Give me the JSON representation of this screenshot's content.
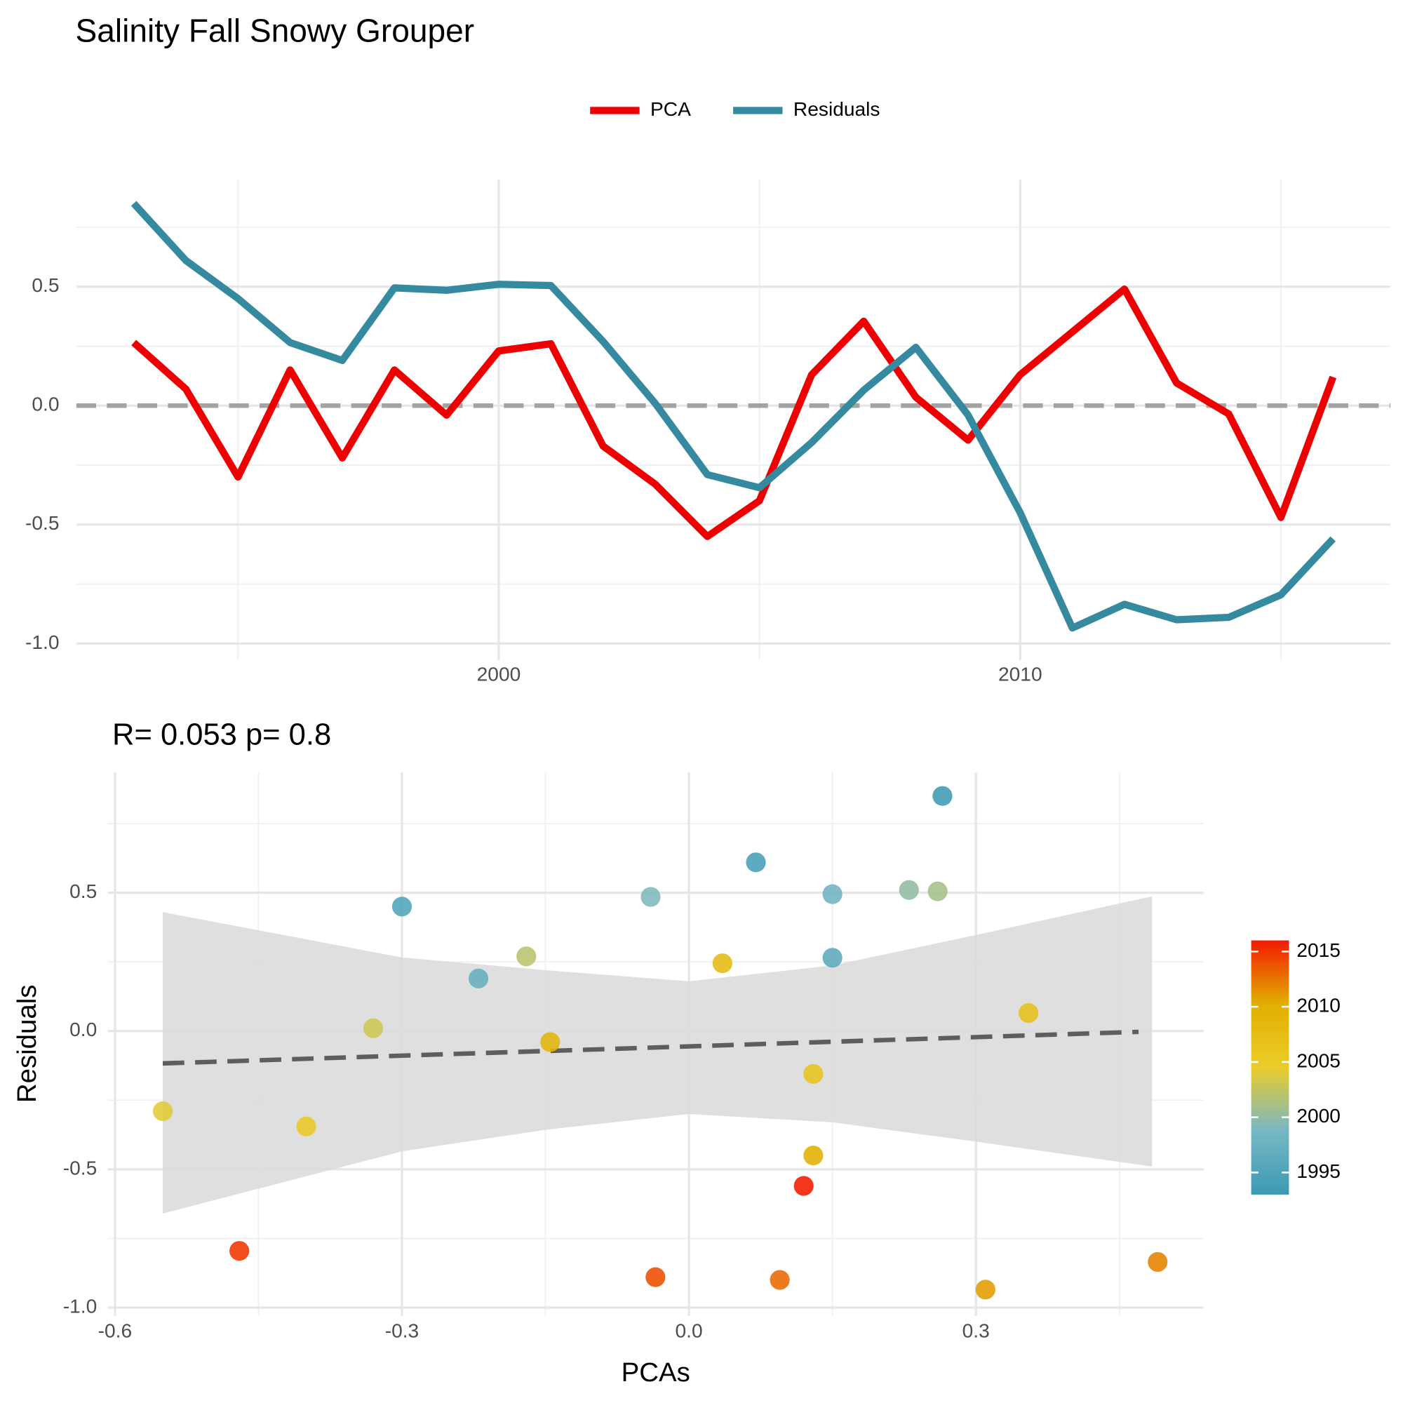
{
  "chart_data": [
    {
      "type": "line",
      "title": "Salinity Fall Snowy Grouper",
      "x": [
        1993,
        1994,
        1995,
        1996,
        1997,
        1998,
        1999,
        2000,
        2001,
        2002,
        2003,
        2004,
        2005,
        2006,
        2007,
        2008,
        2009,
        2010,
        2011,
        2012,
        2013,
        2014,
        2015,
        2016
      ],
      "series": [
        {
          "name": "PCA",
          "color": "#ee0000",
          "values": [
            0.265,
            0.07,
            -0.3,
            0.15,
            -0.22,
            0.15,
            -0.04,
            0.23,
            0.26,
            -0.17,
            -0.33,
            -0.55,
            -0.4,
            0.13,
            0.355,
            0.035,
            -0.145,
            0.13,
            0.31,
            0.49,
            0.095,
            -0.035,
            -0.47,
            0.12
          ]
        },
        {
          "name": "Residuals",
          "color": "#358aa0",
          "values": [
            0.85,
            0.61,
            0.45,
            0.265,
            0.19,
            0.495,
            0.485,
            0.51,
            0.505,
            0.27,
            0.01,
            -0.29,
            -0.345,
            -0.155,
            0.065,
            0.245,
            -0.04,
            -0.45,
            -0.935,
            -0.835,
            -0.9,
            -0.89,
            -0.795,
            -0.56
          ]
        }
      ],
      "xlim": [
        1991.9,
        2017.1
      ],
      "ylim": [
        -1.07,
        0.95
      ],
      "xticks": [
        2000,
        2010
      ],
      "minor_xticks": [
        1995,
        2005,
        2015
      ],
      "yticks": [
        {
          "value": -1,
          "label": "-1.0"
        },
        -0.5,
        {
          "value": 0,
          "label": "0.0"
        },
        0.5
      ],
      "minor_yticks": [
        -0.75,
        -0.25,
        0.25,
        0.75
      ],
      "reference_line": 0,
      "grid": true,
      "legend": "top"
    },
    {
      "type": "scatter",
      "title": "R= 0.053  p= 0.8",
      "xlabel": "PCAs",
      "ylabel": "Residuals",
      "xlim": [
        -0.6075,
        0.538
      ],
      "ylim": [
        -1.03,
        0.935
      ],
      "xticks": [
        -0.6,
        -0.3,
        {
          "value": 0,
          "label": "0.0"
        },
        0.3
      ],
      "minor_xticks": [
        -0.45,
        -0.15,
        0.15,
        0.45
      ],
      "yticks": [
        {
          "value": -1,
          "label": "-1.0"
        },
        -0.5,
        {
          "value": 0,
          "label": "0.0"
        },
        0.5
      ],
      "minor_yticks": [
        -0.75,
        -0.25,
        0.25,
        0.75
      ],
      "fit": {
        "x": [
          -0.55,
          0.47
        ],
        "y": [
          -0.117,
          -0.003
        ]
      },
      "band": {
        "x": [
          -0.55,
          -0.3,
          -0.15,
          0,
          0.15,
          0.3,
          0.484
        ],
        "lower": [
          -0.66,
          -0.435,
          -0.357,
          -0.3,
          -0.33,
          -0.4,
          -0.49
        ],
        "upper": [
          0.43,
          0.266,
          0.22,
          0.18,
          0.237,
          0.347,
          0.487
        ]
      },
      "colorbar": {
        "ticks": [
          1995,
          2000,
          2005,
          2010,
          2015
        ],
        "colors": [
          "#3B9AB2",
          "#78B7C5",
          "#EBCC2A",
          "#E1AF00",
          "#F21A00"
        ]
      },
      "grid": true
    }
  ]
}
